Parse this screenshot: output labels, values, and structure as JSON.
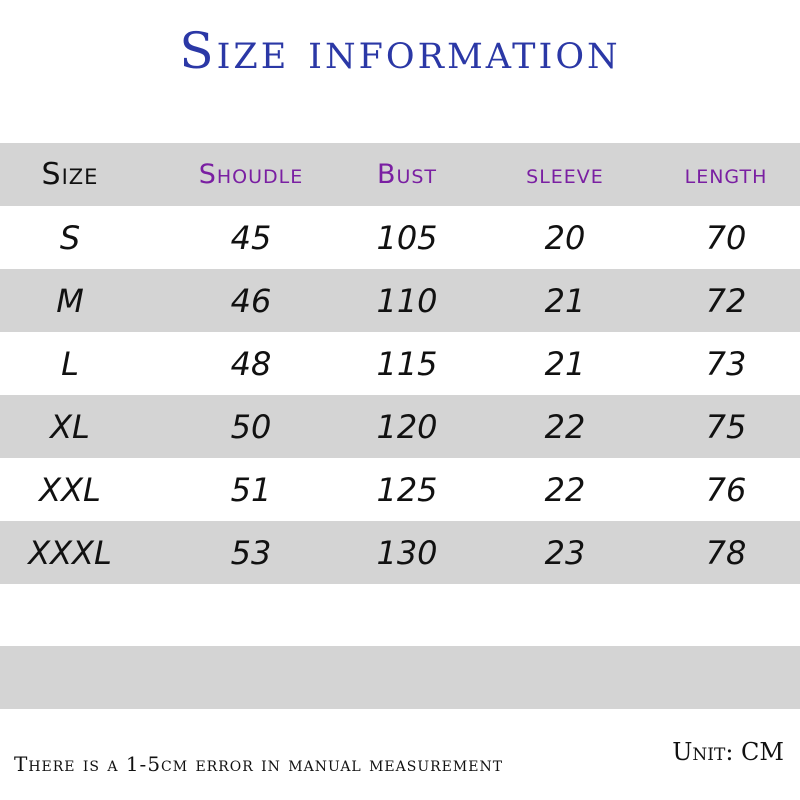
{
  "title": "Size information",
  "headers": [
    "Size",
    "Shoudle",
    "Bust",
    "sleeve",
    "length"
  ],
  "rows": [
    [
      "S",
      "45",
      "105",
      "20",
      "70"
    ],
    [
      "M",
      "46",
      "110",
      "21",
      "72"
    ],
    [
      "L",
      "48",
      "115",
      "21",
      "73"
    ],
    [
      "XL",
      "50",
      "120",
      "22",
      "75"
    ],
    [
      "XXL",
      "51",
      "125",
      "22",
      "76"
    ],
    [
      "XXXL",
      "53",
      "130",
      "23",
      "78"
    ]
  ],
  "footer_note": "There is a 1-5cm error in manual measurement",
  "unit": "Unit: CM",
  "colors": {
    "title": "#2b38a6",
    "header_text": "#7a1fa2",
    "band": "#d4d4d4"
  }
}
